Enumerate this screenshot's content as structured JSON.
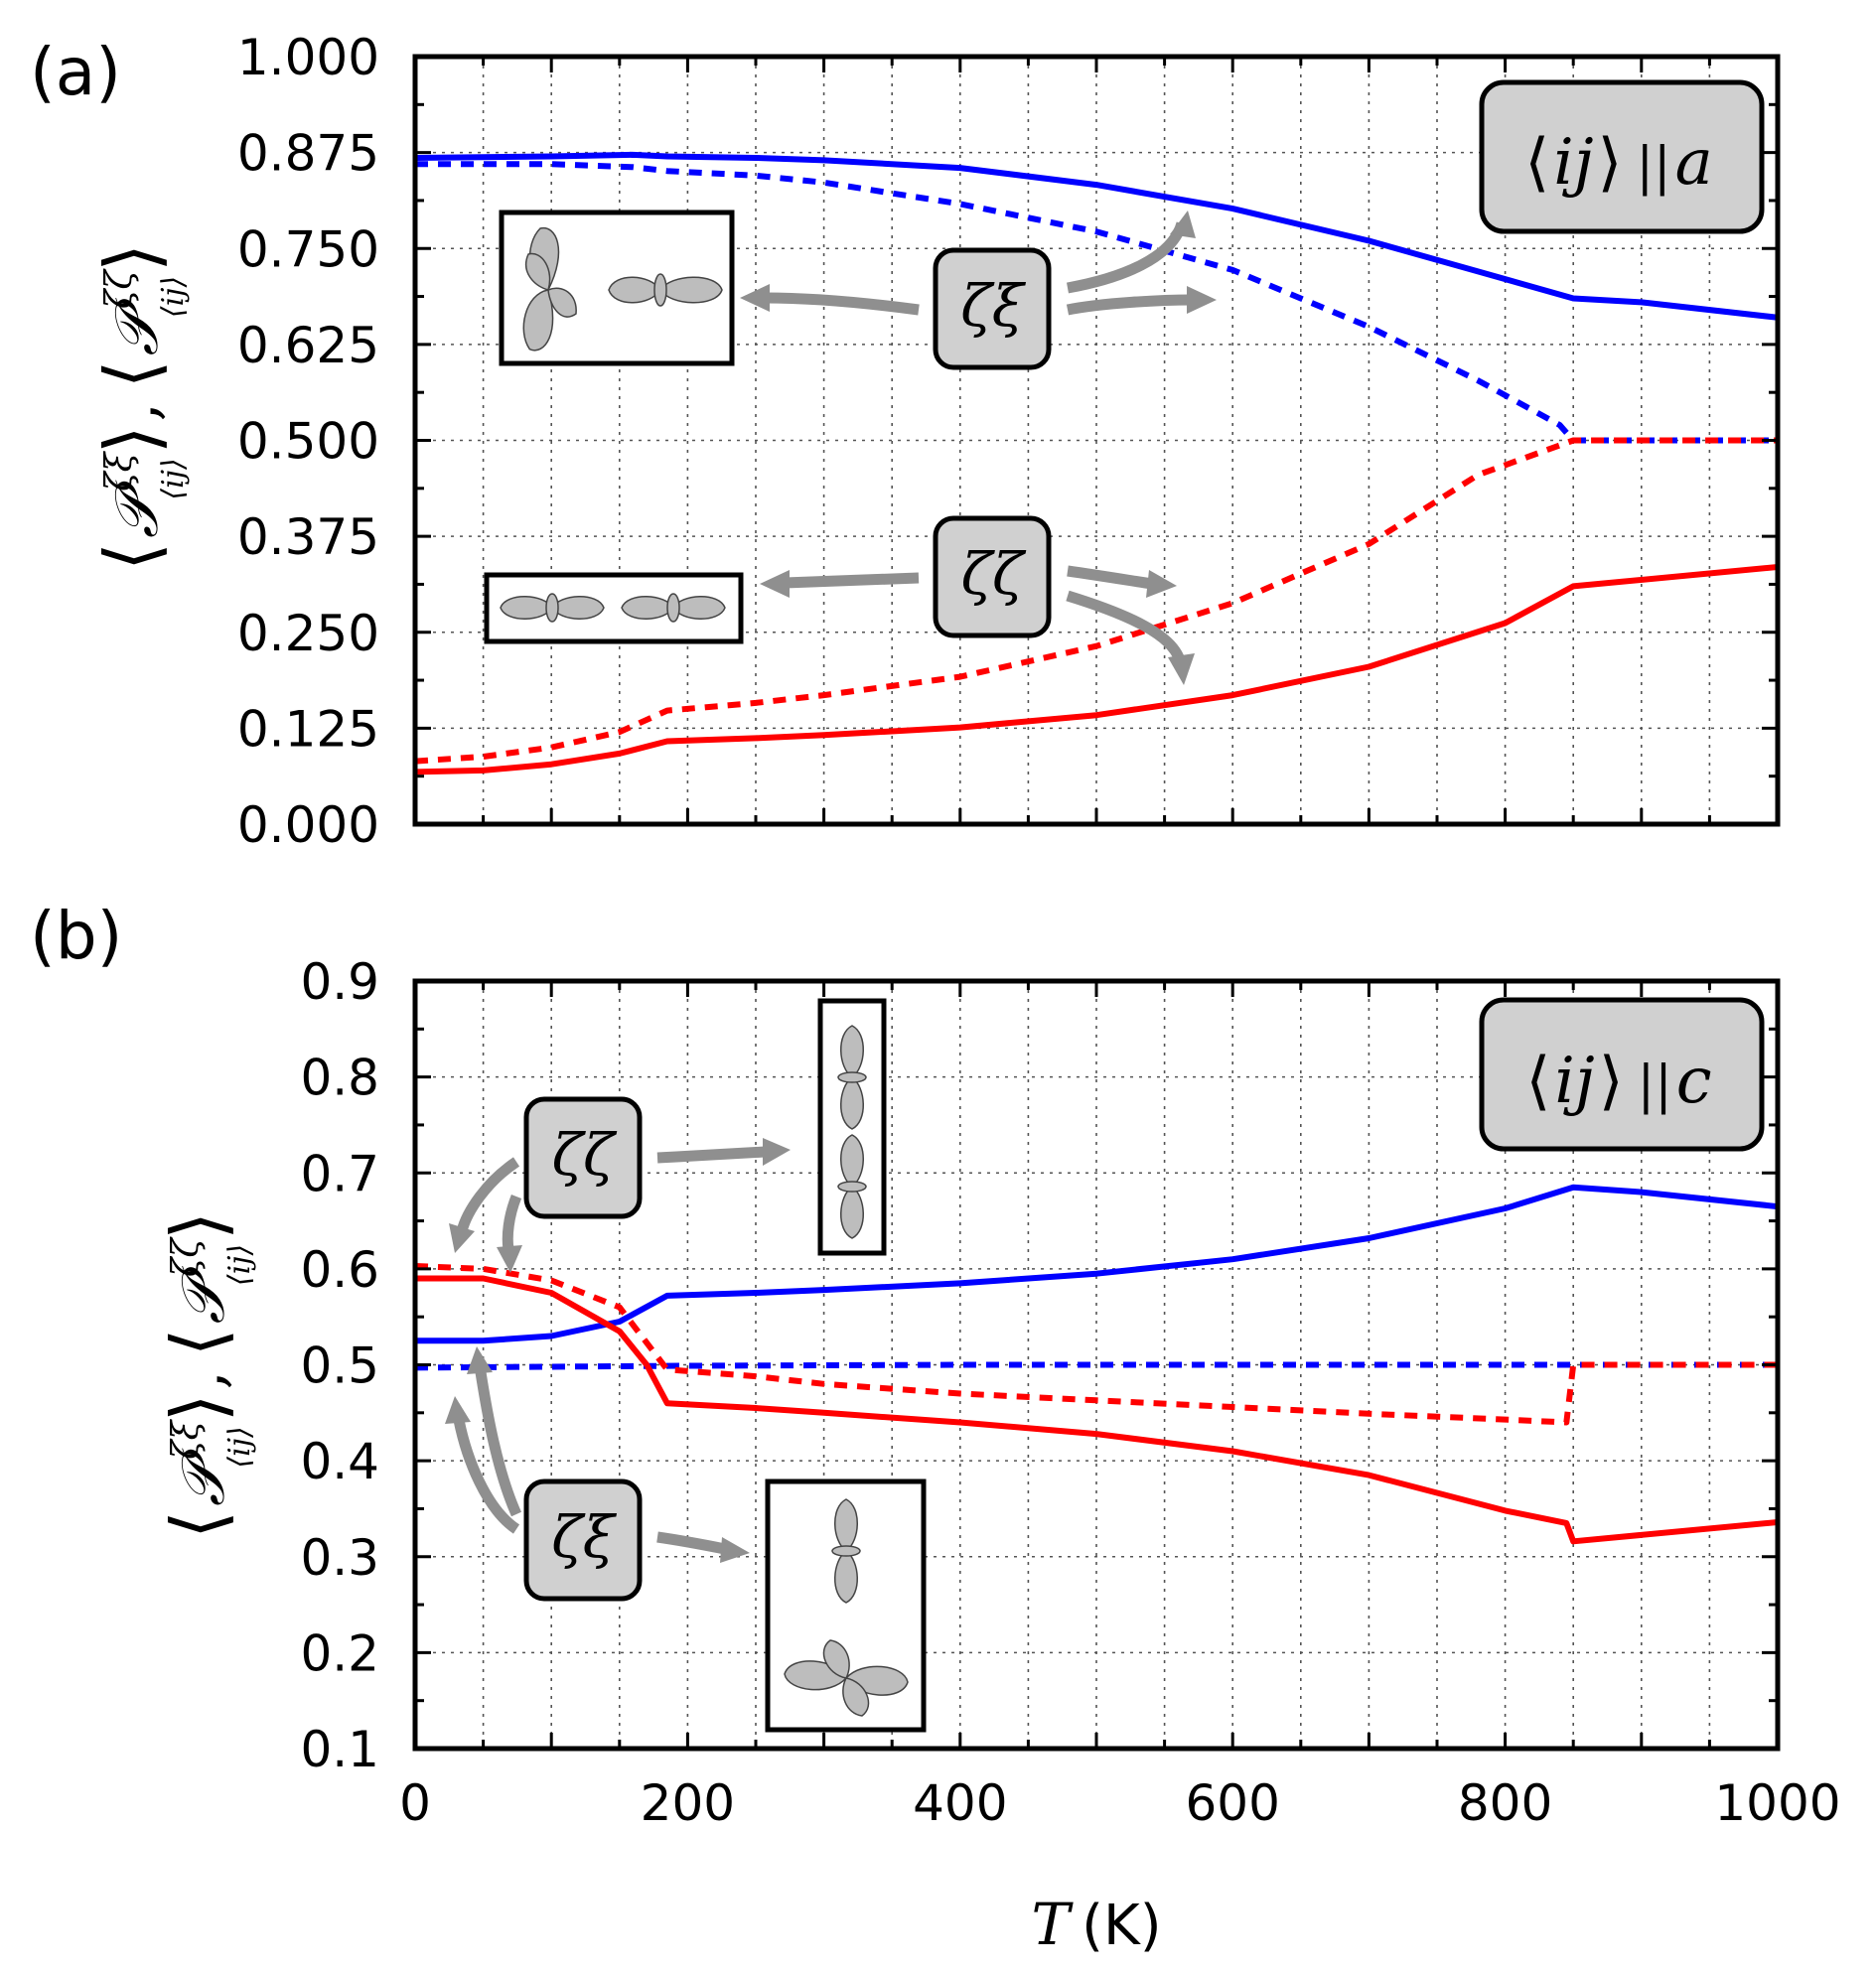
{
  "chart_data": [
    {
      "type": "line",
      "panel_label": "(a)",
      "annotation": "⟨ij⟩ ||a",
      "annotation_parts": {
        "bracket_l": "⟨",
        "ij": "ij",
        "bracket_r": "⟩",
        "par": "||",
        "dir": "a"
      },
      "ylabel_parts": {
        "left": "⟨",
        "P": "𝒫",
        "sup1": "ζξ",
        "sub": "⟨ij⟩",
        "right": "⟩",
        "comma": ",",
        "sup2": "ζζ"
      },
      "xlim": [
        0,
        1000
      ],
      "ylim": [
        0.0,
        1.0
      ],
      "yticks": [
        "0.000",
        "0.125",
        "0.250",
        "0.375",
        "0.500",
        "0.625",
        "0.750",
        "0.875",
        "1.000"
      ],
      "ytick_values": [
        0.0,
        0.125,
        0.25,
        0.375,
        0.5,
        0.625,
        0.75,
        0.875,
        1.0
      ],
      "grid": true,
      "tags": [
        "ζξ",
        "ζζ"
      ],
      "series": [
        {
          "color": "#0000ff",
          "style": "solid",
          "x": [
            0,
            50,
            100,
            160,
            185,
            250,
            300,
            400,
            500,
            600,
            700,
            780,
            850,
            900,
            1000
          ],
          "y": [
            0.868,
            0.869,
            0.87,
            0.872,
            0.87,
            0.868,
            0.865,
            0.855,
            0.833,
            0.802,
            0.76,
            0.72,
            0.685,
            0.68,
            0.66
          ]
        },
        {
          "color": "#0000ff",
          "style": "dashed",
          "x": [
            0,
            50,
            100,
            160,
            185,
            250,
            300,
            400,
            500,
            600,
            700,
            780,
            840,
            850,
            1000
          ],
          "y": [
            0.86,
            0.86,
            0.86,
            0.856,
            0.851,
            0.845,
            0.836,
            0.808,
            0.772,
            0.722,
            0.648,
            0.578,
            0.52,
            0.5,
            0.5
          ]
        },
        {
          "color": "#ff0000",
          "style": "solid",
          "x": [
            0,
            50,
            100,
            150,
            185,
            250,
            300,
            400,
            500,
            600,
            700,
            800,
            850,
            1000
          ],
          "y": [
            0.068,
            0.07,
            0.078,
            0.092,
            0.108,
            0.112,
            0.116,
            0.126,
            0.142,
            0.168,
            0.205,
            0.262,
            0.31,
            0.335
          ]
        },
        {
          "color": "#ff0000",
          "style": "dashed",
          "x": [
            0,
            50,
            100,
            150,
            185,
            250,
            300,
            400,
            500,
            600,
            700,
            780,
            850,
            1000
          ],
          "y": [
            0.082,
            0.088,
            0.1,
            0.12,
            0.148,
            0.158,
            0.168,
            0.192,
            0.232,
            0.288,
            0.365,
            0.455,
            0.5,
            0.5
          ]
        }
      ]
    },
    {
      "type": "line",
      "panel_label": "(b)",
      "annotation": "⟨ij⟩ ||c",
      "annotation_parts": {
        "bracket_l": "⟨",
        "ij": "ij",
        "bracket_r": "⟩",
        "par": "||",
        "dir": "c"
      },
      "ylabel_parts": {
        "left": "⟨",
        "P": "𝒫",
        "sup1": "ζξ",
        "sub": "⟨ij⟩",
        "right": "⟩",
        "comma": ",",
        "sup2": "ζζ"
      },
      "xlim": [
        0,
        1000
      ],
      "ylim": [
        0.1,
        0.9
      ],
      "yticks": [
        "0.1",
        "0.2",
        "0.3",
        "0.4",
        "0.5",
        "0.6",
        "0.7",
        "0.8",
        "0.9"
      ],
      "ytick_values": [
        0.1,
        0.2,
        0.3,
        0.4,
        0.5,
        0.6,
        0.7,
        0.8,
        0.9
      ],
      "xticks": [
        "0",
        "200",
        "400",
        "600",
        "800",
        "1000"
      ],
      "xtick_values": [
        0,
        200,
        400,
        600,
        800,
        1000
      ],
      "xlabel_parts": {
        "var": "T",
        "unit": "(K)"
      },
      "grid": true,
      "tags": [
        "ζζ",
        "ζξ"
      ],
      "series": [
        {
          "color": "#0000ff",
          "style": "solid",
          "x": [
            0,
            50,
            100,
            150,
            185,
            250,
            300,
            400,
            500,
            600,
            700,
            800,
            850,
            900,
            1000
          ],
          "y": [
            0.525,
            0.525,
            0.53,
            0.545,
            0.572,
            0.575,
            0.578,
            0.585,
            0.595,
            0.61,
            0.632,
            0.663,
            0.685,
            0.68,
            0.665
          ]
        },
        {
          "color": "#0000ff",
          "style": "dashed",
          "x": [
            0,
            200,
            400,
            600,
            800,
            1000
          ],
          "y": [
            0.497,
            0.499,
            0.5,
            0.5,
            0.5,
            0.5
          ]
        },
        {
          "color": "#ff0000",
          "style": "solid",
          "x": [
            0,
            50,
            100,
            150,
            170,
            185,
            250,
            300,
            400,
            500,
            600,
            700,
            800,
            845,
            850,
            1000
          ],
          "y": [
            0.59,
            0.59,
            0.575,
            0.535,
            0.5,
            0.46,
            0.455,
            0.45,
            0.44,
            0.428,
            0.41,
            0.385,
            0.348,
            0.335,
            0.316,
            0.336
          ]
        },
        {
          "color": "#ff0000",
          "style": "dashed",
          "x": [
            0,
            50,
            100,
            150,
            185,
            250,
            300,
            400,
            500,
            600,
            700,
            800,
            845,
            850,
            1000
          ],
          "y": [
            0.603,
            0.6,
            0.588,
            0.56,
            0.495,
            0.488,
            0.48,
            0.47,
            0.463,
            0.456,
            0.449,
            0.443,
            0.44,
            0.5,
            0.5
          ]
        }
      ]
    }
  ]
}
